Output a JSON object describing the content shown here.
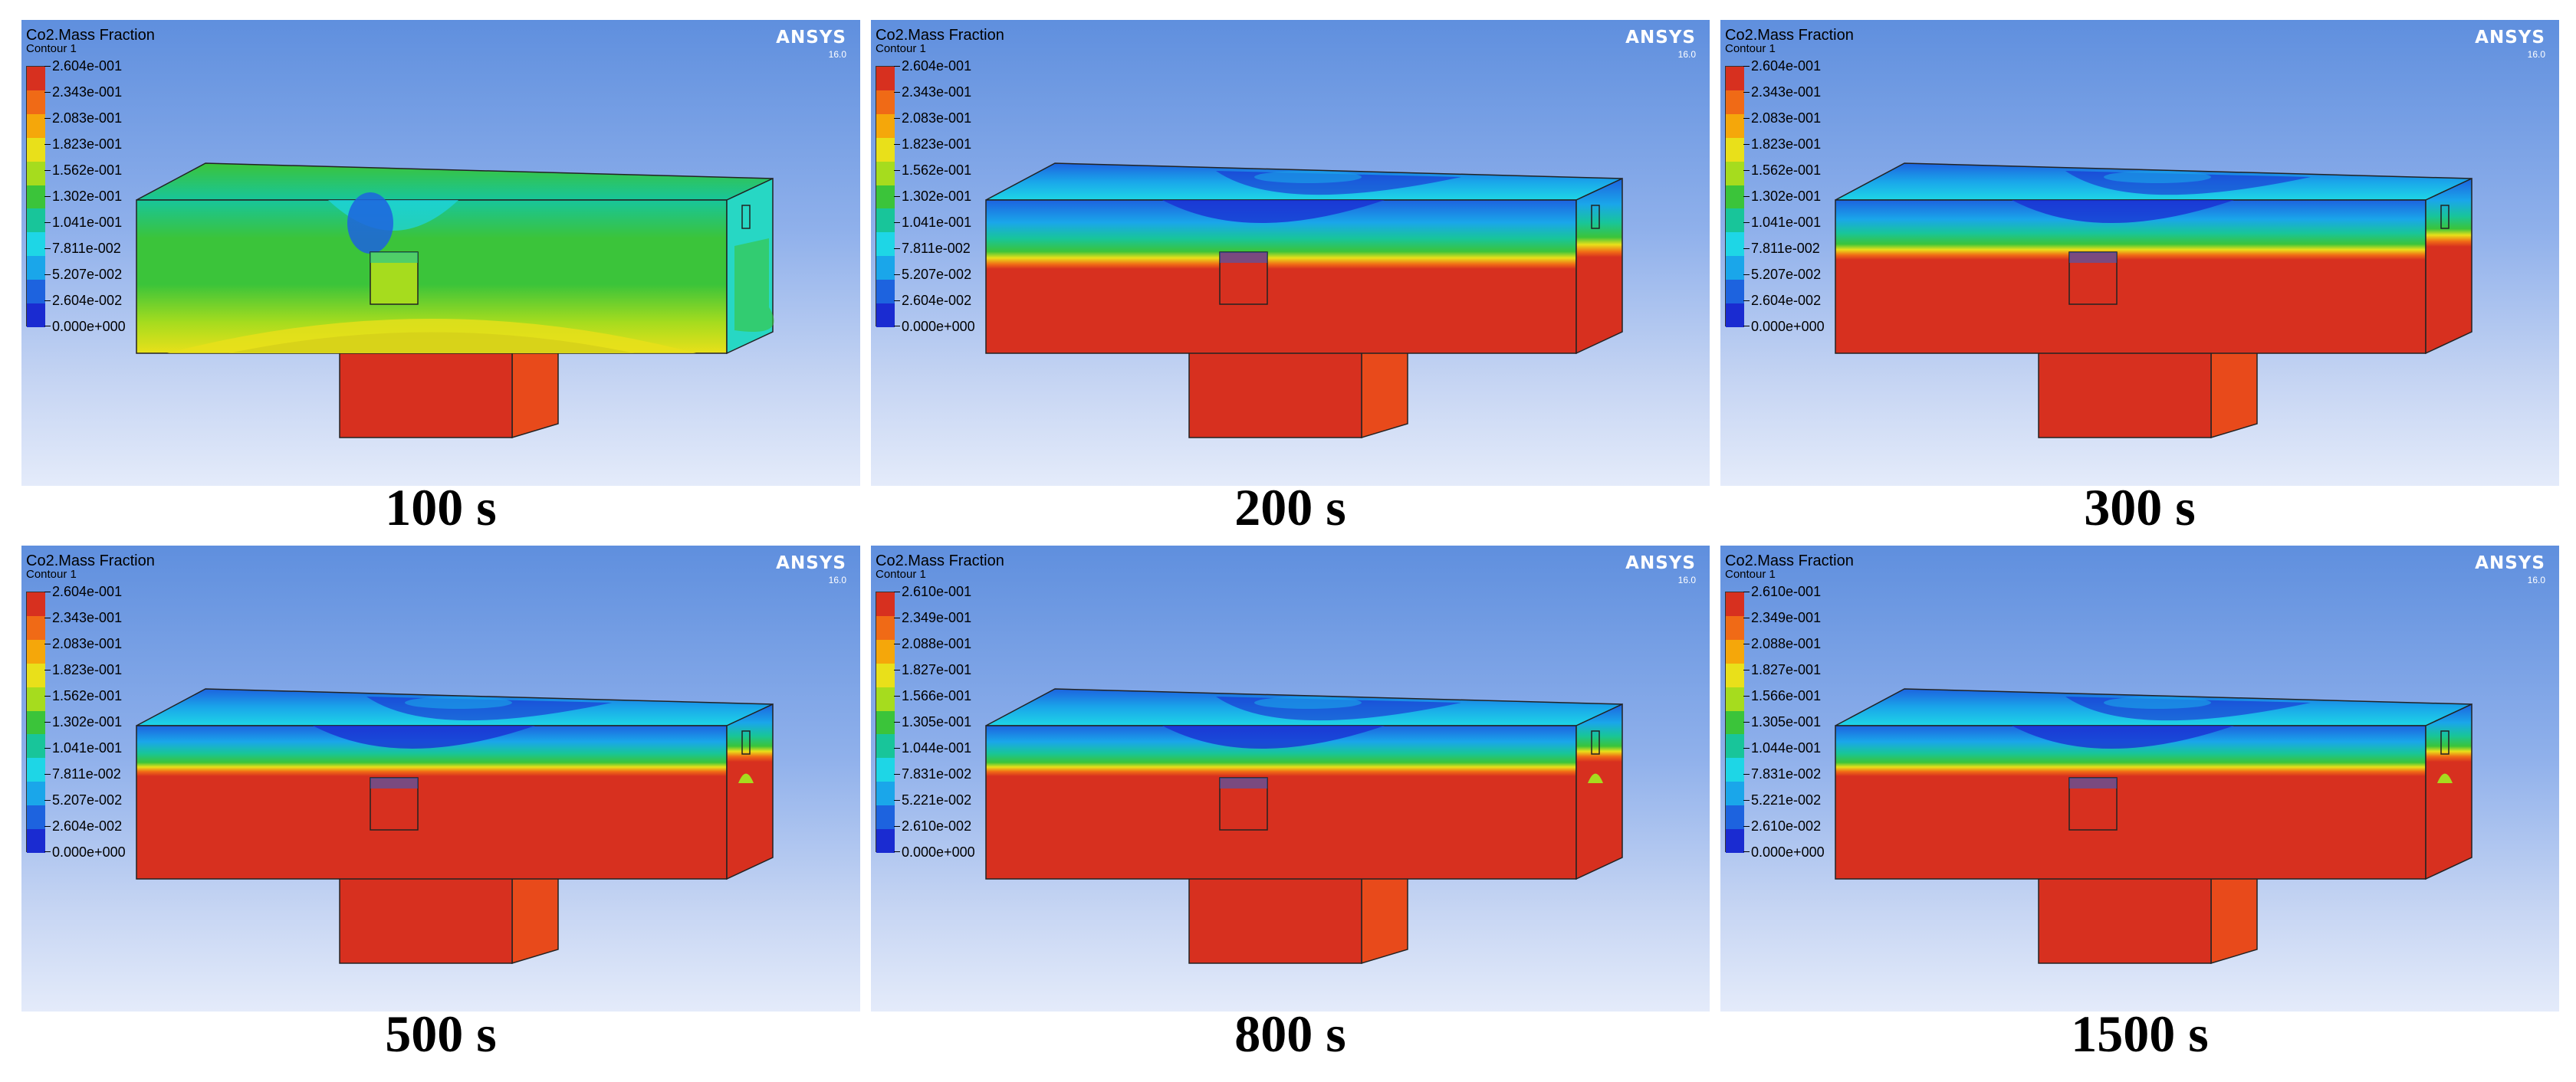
{
  "panels": [
    {
      "variable": "Co2.Mass Fraction",
      "contour": "Contour 1",
      "logo": "ANSYS",
      "version": "16.0",
      "legend": [
        "2.604e-001",
        "2.343e-001",
        "2.083e-001",
        "1.823e-001",
        "1.562e-001",
        "1.302e-001",
        "1.041e-001",
        "7.811e-002",
        "5.207e-002",
        "2.604e-002",
        "0.000e+000"
      ],
      "caption": "100 s",
      "stage": 0
    },
    {
      "variable": "Co2.Mass Fraction",
      "contour": "Contour 1",
      "logo": "ANSYS",
      "version": "16.0",
      "legend": [
        "2.604e-001",
        "2.343e-001",
        "2.083e-001",
        "1.823e-001",
        "1.562e-001",
        "1.302e-001",
        "1.041e-001",
        "7.811e-002",
        "5.207e-002",
        "2.604e-002",
        "0.000e+000"
      ],
      "caption": "200 s",
      "stage": 1
    },
    {
      "variable": "Co2.Mass Fraction",
      "contour": "Contour 1",
      "logo": "ANSYS",
      "version": "16.0",
      "legend": [
        "2.604e-001",
        "2.343e-001",
        "2.083e-001",
        "1.823e-001",
        "1.562e-001",
        "1.302e-001",
        "1.041e-001",
        "7.811e-002",
        "5.207e-002",
        "2.604e-002",
        "0.000e+000"
      ],
      "caption": "300 s",
      "stage": 2
    },
    {
      "variable": "Co2.Mass Fraction",
      "contour": "Contour 1",
      "logo": "ANSYS",
      "version": "16.0",
      "legend": [
        "2.604e-001",
        "2.343e-001",
        "2.083e-001",
        "1.823e-001",
        "1.562e-001",
        "1.302e-001",
        "1.041e-001",
        "7.811e-002",
        "5.207e-002",
        "2.604e-002",
        "0.000e+000"
      ],
      "caption": "500 s",
      "stage": 3
    },
    {
      "variable": "Co2.Mass Fraction",
      "contour": "Contour 1",
      "logo": "ANSYS",
      "version": "16.0",
      "legend": [
        "2.610e-001",
        "2.349e-001",
        "2.088e-001",
        "1.827e-001",
        "1.566e-001",
        "1.305e-001",
        "1.044e-001",
        "7.831e-002",
        "5.221e-002",
        "2.610e-002",
        "0.000e+000"
      ],
      "caption": "800 s",
      "stage": 4
    },
    {
      "variable": "Co2.Mass Fraction",
      "contour": "Contour 1",
      "logo": "ANSYS",
      "version": "16.0",
      "legend": [
        "2.610e-001",
        "2.349e-001",
        "2.088e-001",
        "1.827e-001",
        "1.566e-001",
        "1.305e-001",
        "1.044e-001",
        "7.831e-002",
        "5.221e-002",
        "2.610e-002",
        "0.000e+000"
      ],
      "caption": "1500 s",
      "stage": 5
    }
  ],
  "legend_colors": [
    "#d7301f",
    "#f06a16",
    "#f5a70a",
    "#e9e01a",
    "#a6dc1e",
    "#3bc43a",
    "#18c59a",
    "#1ed6e6",
    "#1aa6ea",
    "#1d63df",
    "#1a2bd1"
  ]
}
